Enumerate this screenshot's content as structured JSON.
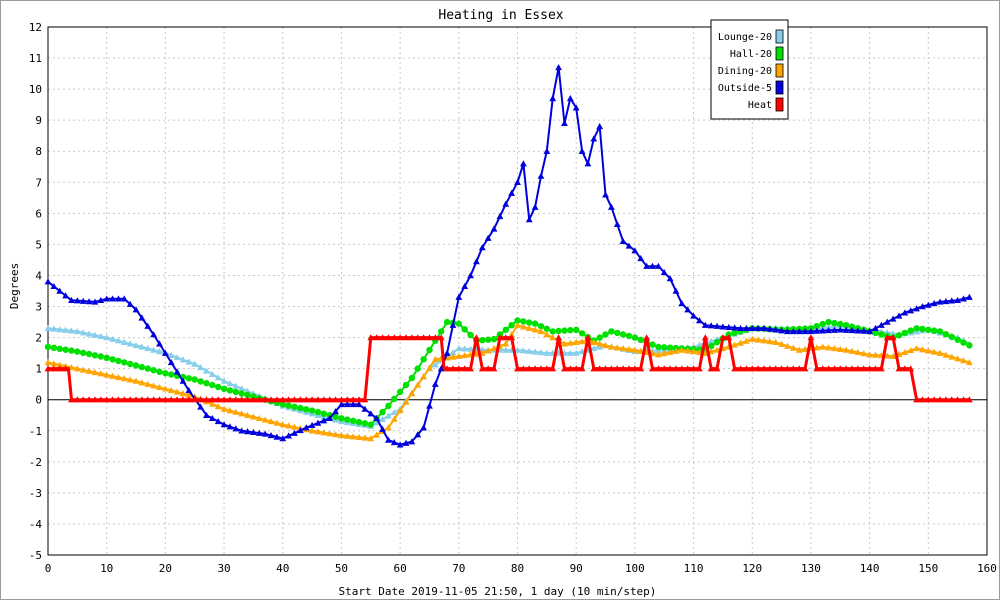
{
  "chart_data": {
    "type": "line",
    "title": "Heating in Essex",
    "xlabel": "Start Date 2019-11-05 21:50, 1 day (10 min/step)",
    "ylabel": "Degrees",
    "xlim": [
      0,
      160
    ],
    "ylim": [
      -5,
      12
    ],
    "x_ticks": [
      "0",
      "10",
      "20",
      "30",
      "40",
      "50",
      "60",
      "70",
      "80",
      "90",
      "100",
      "110",
      "120",
      "130",
      "140",
      "150",
      "160"
    ],
    "y_ticks": [
      "12",
      "11",
      "10",
      "9",
      "8",
      "7",
      "6",
      "5",
      "4",
      "3",
      "2",
      "1",
      "0",
      "-1",
      "-2",
      "-3",
      "-4",
      "-5"
    ],
    "grid": true,
    "legend_position": "top-right",
    "series": [
      {
        "name": "Lounge-20",
        "color": "#87ceeb",
        "marker": "triangle",
        "points": [
          [
            0,
            2.3
          ],
          [
            5,
            2.2
          ],
          [
            10,
            2.0
          ],
          [
            15,
            1.75
          ],
          [
            20,
            1.5
          ],
          [
            25,
            1.15
          ],
          [
            30,
            0.6
          ],
          [
            35,
            0.2
          ],
          [
            40,
            -0.2
          ],
          [
            45,
            -0.45
          ],
          [
            50,
            -0.7
          ],
          [
            55,
            -0.85
          ],
          [
            60,
            -0.3
          ],
          [
            65,
            1.0
          ],
          [
            70,
            1.65
          ],
          [
            75,
            1.6
          ],
          [
            80,
            1.6
          ],
          [
            85,
            1.5
          ],
          [
            90,
            1.5
          ],
          [
            95,
            1.75
          ],
          [
            100,
            1.55
          ],
          [
            105,
            1.6
          ],
          [
            110,
            1.7
          ],
          [
            115,
            2.0
          ],
          [
            120,
            2.3
          ],
          [
            125,
            2.3
          ],
          [
            130,
            2.25
          ],
          [
            135,
            2.4
          ],
          [
            140,
            2.25
          ],
          [
            145,
            2.1
          ],
          [
            150,
            2.25
          ],
          [
            155,
            2.0
          ],
          [
            157,
            1.8
          ]
        ]
      },
      {
        "name": "Hall-20",
        "color": "#00e000",
        "marker": "circle",
        "points": [
          [
            0,
            1.7
          ],
          [
            5,
            1.55
          ],
          [
            10,
            1.35
          ],
          [
            15,
            1.1
          ],
          [
            20,
            0.85
          ],
          [
            25,
            0.65
          ],
          [
            30,
            0.35
          ],
          [
            35,
            0.1
          ],
          [
            40,
            -0.15
          ],
          [
            45,
            -0.35
          ],
          [
            50,
            -0.6
          ],
          [
            55,
            -0.8
          ],
          [
            58,
            -0.2
          ],
          [
            62,
            0.7
          ],
          [
            66,
            1.9
          ],
          [
            68,
            2.5
          ],
          [
            70,
            2.45
          ],
          [
            73,
            1.9
          ],
          [
            76,
            1.95
          ],
          [
            80,
            2.55
          ],
          [
            83,
            2.45
          ],
          [
            86,
            2.2
          ],
          [
            90,
            2.25
          ],
          [
            93,
            1.9
          ],
          [
            96,
            2.2
          ],
          [
            100,
            2.0
          ],
          [
            104,
            1.7
          ],
          [
            108,
            1.65
          ],
          [
            112,
            1.6
          ],
          [
            116,
            2.1
          ],
          [
            120,
            2.3
          ],
          [
            125,
            2.25
          ],
          [
            130,
            2.3
          ],
          [
            133,
            2.5
          ],
          [
            136,
            2.4
          ],
          [
            140,
            2.2
          ],
          [
            144,
            2.0
          ],
          [
            148,
            2.3
          ],
          [
            152,
            2.2
          ],
          [
            157,
            1.75
          ]
        ]
      },
      {
        "name": "Dining-20",
        "color": "#ffa500",
        "marker": "triangle",
        "points": [
          [
            0,
            1.2
          ],
          [
            5,
            1.0
          ],
          [
            10,
            0.8
          ],
          [
            15,
            0.6
          ],
          [
            20,
            0.35
          ],
          [
            25,
            0.1
          ],
          [
            30,
            -0.3
          ],
          [
            35,
            -0.55
          ],
          [
            40,
            -0.8
          ],
          [
            45,
            -1.0
          ],
          [
            50,
            -1.15
          ],
          [
            55,
            -1.25
          ],
          [
            58,
            -0.9
          ],
          [
            62,
            0.2
          ],
          [
            66,
            1.3
          ],
          [
            70,
            1.4
          ],
          [
            74,
            1.5
          ],
          [
            78,
            1.8
          ],
          [
            80,
            2.4
          ],
          [
            84,
            2.2
          ],
          [
            88,
            1.8
          ],
          [
            92,
            1.9
          ],
          [
            96,
            1.7
          ],
          [
            100,
            1.6
          ],
          [
            104,
            1.45
          ],
          [
            108,
            1.6
          ],
          [
            112,
            1.5
          ],
          [
            116,
            1.7
          ],
          [
            120,
            1.95
          ],
          [
            124,
            1.85
          ],
          [
            128,
            1.6
          ],
          [
            132,
            1.7
          ],
          [
            136,
            1.6
          ],
          [
            140,
            1.45
          ],
          [
            144,
            1.4
          ],
          [
            148,
            1.65
          ],
          [
            152,
            1.5
          ],
          [
            157,
            1.2
          ]
        ]
      },
      {
        "name": "Outside-5",
        "color": "#0000dd",
        "marker": "triangle",
        "points": [
          [
            0,
            3.8
          ],
          [
            2,
            3.5
          ],
          [
            4,
            3.2
          ],
          [
            8,
            3.15
          ],
          [
            10,
            3.25
          ],
          [
            13,
            3.25
          ],
          [
            15,
            2.9
          ],
          [
            18,
            2.1
          ],
          [
            21,
            1.2
          ],
          [
            24,
            0.3
          ],
          [
            27,
            -0.5
          ],
          [
            30,
            -0.8
          ],
          [
            33,
            -1.0
          ],
          [
            37,
            -1.1
          ],
          [
            40,
            -1.25
          ],
          [
            44,
            -0.9
          ],
          [
            48,
            -0.6
          ],
          [
            50,
            -0.15
          ],
          [
            53,
            -0.15
          ],
          [
            56,
            -0.6
          ],
          [
            58,
            -1.3
          ],
          [
            60,
            -1.45
          ],
          [
            62,
            -1.35
          ],
          [
            64,
            -0.9
          ],
          [
            66,
            0.5
          ],
          [
            68,
            1.5
          ],
          [
            70,
            3.3
          ],
          [
            72,
            4.0
          ],
          [
            74,
            4.9
          ],
          [
            76,
            5.5
          ],
          [
            78,
            6.3
          ],
          [
            80,
            7.0
          ],
          [
            81,
            7.6
          ],
          [
            82,
            5.8
          ],
          [
            83,
            6.2
          ],
          [
            84,
            7.2
          ],
          [
            85,
            8.0
          ],
          [
            86,
            9.7
          ],
          [
            87,
            10.7
          ],
          [
            88,
            8.9
          ],
          [
            89,
            9.7
          ],
          [
            90,
            9.4
          ],
          [
            91,
            8.0
          ],
          [
            92,
            7.6
          ],
          [
            93,
            8.4
          ],
          [
            94,
            8.8
          ],
          [
            95,
            6.6
          ],
          [
            96,
            6.2
          ],
          [
            98,
            5.1
          ],
          [
            100,
            4.8
          ],
          [
            102,
            4.3
          ],
          [
            104,
            4.3
          ],
          [
            106,
            3.9
          ],
          [
            108,
            3.1
          ],
          [
            110,
            2.7
          ],
          [
            112,
            2.4
          ],
          [
            115,
            2.35
          ],
          [
            118,
            2.3
          ],
          [
            122,
            2.3
          ],
          [
            126,
            2.2
          ],
          [
            130,
            2.2
          ],
          [
            135,
            2.25
          ],
          [
            140,
            2.2
          ],
          [
            143,
            2.5
          ],
          [
            146,
            2.8
          ],
          [
            149,
            3.0
          ],
          [
            152,
            3.15
          ],
          [
            155,
            3.2
          ],
          [
            157,
            3.3
          ]
        ]
      },
      {
        "name": "Heat",
        "color": "#ff0000",
        "marker": "triangle",
        "points": [
          [
            0,
            1
          ],
          [
            3.5,
            1
          ],
          [
            4,
            0
          ],
          [
            54,
            0
          ],
          [
            55,
            2
          ],
          [
            67,
            2
          ],
          [
            67.5,
            1
          ],
          [
            72,
            1
          ],
          [
            73,
            2
          ],
          [
            74,
            1
          ],
          [
            76,
            1
          ],
          [
            77,
            2
          ],
          [
            79,
            2
          ],
          [
            80,
            1
          ],
          [
            86,
            1
          ],
          [
            87,
            2
          ],
          [
            88,
            1
          ],
          [
            91,
            1
          ],
          [
            92,
            2
          ],
          [
            93,
            1
          ],
          [
            101,
            1
          ],
          [
            102,
            2
          ],
          [
            103,
            1
          ],
          [
            111,
            1
          ],
          [
            112,
            2
          ],
          [
            113,
            1
          ],
          [
            114,
            1
          ],
          [
            115,
            2
          ],
          [
            116,
            2
          ],
          [
            117,
            1
          ],
          [
            129,
            1
          ],
          [
            130,
            2
          ],
          [
            131,
            1
          ],
          [
            142,
            1
          ],
          [
            143,
            2
          ],
          [
            144,
            2
          ],
          [
            145,
            1
          ],
          [
            147,
            1
          ],
          [
            148,
            0
          ],
          [
            157,
            0
          ]
        ]
      }
    ]
  }
}
